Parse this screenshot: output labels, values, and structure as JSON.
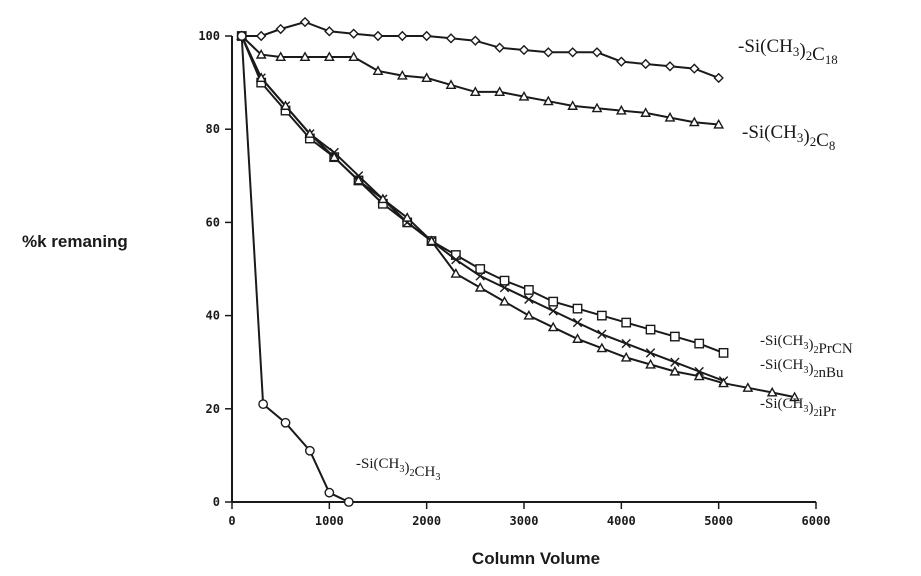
{
  "chart_data": {
    "type": "line",
    "xlabel": "Column Volume",
    "ylabel": "%k remaning",
    "xlim": [
      0,
      6000
    ],
    "ylim": [
      0,
      100
    ],
    "x_ticks": [
      "0",
      "1000",
      "2000",
      "3000",
      "4000",
      "5000",
      "6000"
    ],
    "y_ticks": [
      "0",
      "20",
      "40",
      "60",
      "80",
      "100"
    ],
    "grid": false,
    "legend": "inline labels at series ends",
    "series": [
      {
        "name": "-Si(CH3)2C18",
        "label_parts": [
          [
            "-Si(CH",
            ""
          ],
          [
            "3",
            "sub"
          ],
          [
            ")",
            ""
          ],
          [
            "2",
            "sub"
          ],
          [
            "C",
            ""
          ],
          [
            "18",
            "sub"
          ]
        ],
        "marker": "diamond",
        "x": [
          100,
          300,
          500,
          750,
          1000,
          1250,
          1500,
          1750,
          2000,
          2250,
          2500,
          2750,
          3000,
          3250,
          3500,
          3750,
          4000,
          4250,
          4500,
          4750,
          5000
        ],
        "y": [
          100,
          100,
          101.5,
          103,
          101,
          100.5,
          100,
          100,
          100,
          99.5,
          99,
          97.5,
          97,
          96.5,
          96.5,
          96.5,
          94.5,
          94,
          93.5,
          93,
          91
        ]
      },
      {
        "name": "-Si(CH3)2C8",
        "label_parts": [
          [
            "-Si(CH",
            ""
          ],
          [
            "3",
            "sub"
          ],
          [
            ")",
            ""
          ],
          [
            "2",
            "sub"
          ],
          [
            "C",
            ""
          ],
          [
            "8",
            "sub"
          ]
        ],
        "marker": "triangle",
        "x": [
          100,
          300,
          500,
          750,
          1000,
          1250,
          1500,
          1750,
          2000,
          2250,
          2500,
          2750,
          3000,
          3250,
          3500,
          3750,
          4000,
          4250,
          4500,
          4750,
          5000
        ],
        "y": [
          100,
          96,
          95.5,
          95.5,
          95.5,
          95.5,
          92.5,
          91.5,
          91,
          89.5,
          88,
          88,
          87,
          86,
          85,
          84.5,
          84,
          83.5,
          82.5,
          81.5,
          81
        ]
      },
      {
        "name": "-Si(CH3)2PrCN",
        "label_parts": [
          [
            "-Si(CH",
            ""
          ],
          [
            "3",
            "sub"
          ],
          [
            ")",
            ""
          ],
          [
            "2",
            "sub"
          ],
          [
            "PrCN",
            ""
          ]
        ],
        "marker": "square",
        "x": [
          100,
          300,
          550,
          800,
          1050,
          1300,
          1550,
          1800,
          2050,
          2300,
          2550,
          2800,
          3050,
          3300,
          3550,
          3800,
          4050,
          4300,
          4550,
          4800,
          5050
        ],
        "y": [
          100,
          90,
          84,
          78,
          74,
          69,
          64,
          60,
          56,
          53,
          50,
          47.5,
          45.5,
          43,
          41.5,
          40,
          38.5,
          37,
          35.5,
          34,
          32
        ]
      },
      {
        "name": "-Si(CH3)2nBu",
        "label_parts": [
          [
            "-Si(CH",
            ""
          ],
          [
            "3",
            "sub"
          ],
          [
            ")",
            ""
          ],
          [
            "2",
            "sub"
          ],
          [
            "nBu",
            ""
          ]
        ],
        "marker": "cross",
        "x": [
          100,
          300,
          550,
          800,
          1050,
          1300,
          1550,
          1800,
          2050,
          2300,
          2550,
          2800,
          3050,
          3300,
          3550,
          3800,
          4050,
          4300,
          4550,
          4800,
          5050
        ],
        "y": [
          100,
          91,
          85,
          79,
          75,
          70,
          65,
          60,
          56,
          52,
          48.5,
          46,
          43.5,
          41,
          38.5,
          36,
          34,
          32,
          30,
          28,
          26
        ]
      },
      {
        "name": "-Si(CH3)2iPr",
        "label_parts": [
          [
            "-Si(CH",
            ""
          ],
          [
            "3",
            "sub"
          ],
          [
            ")",
            ""
          ],
          [
            "2",
            "sub"
          ],
          [
            "iPr",
            ""
          ]
        ],
        "marker": "triangle",
        "x": [
          100,
          300,
          550,
          800,
          1050,
          1300,
          1550,
          1800,
          2050,
          2300,
          2550,
          2800,
          3050,
          3300,
          3550,
          3800,
          4050,
          4300,
          4550,
          4800,
          5050,
          5300,
          5550,
          5780
        ],
        "y": [
          100,
          91,
          85,
          79,
          74,
          69,
          65,
          61,
          56,
          49,
          46,
          43,
          40,
          37.5,
          35,
          33,
          31,
          29.5,
          28,
          27,
          25.5,
          24.5,
          23.5,
          22.5
        ]
      },
      {
        "name": "-Si(CH3)2CH3",
        "label_parts": [
          [
            "-Si(CH",
            ""
          ],
          [
            "3",
            "sub"
          ],
          [
            ")",
            ""
          ],
          [
            "2",
            "sub"
          ],
          [
            "CH",
            ""
          ],
          [
            "3",
            "sub"
          ]
        ],
        "marker": "circle",
        "x": [
          100,
          320,
          550,
          800,
          1000,
          1200
        ],
        "y": [
          100,
          21,
          17,
          11,
          2,
          0
        ]
      }
    ]
  }
}
